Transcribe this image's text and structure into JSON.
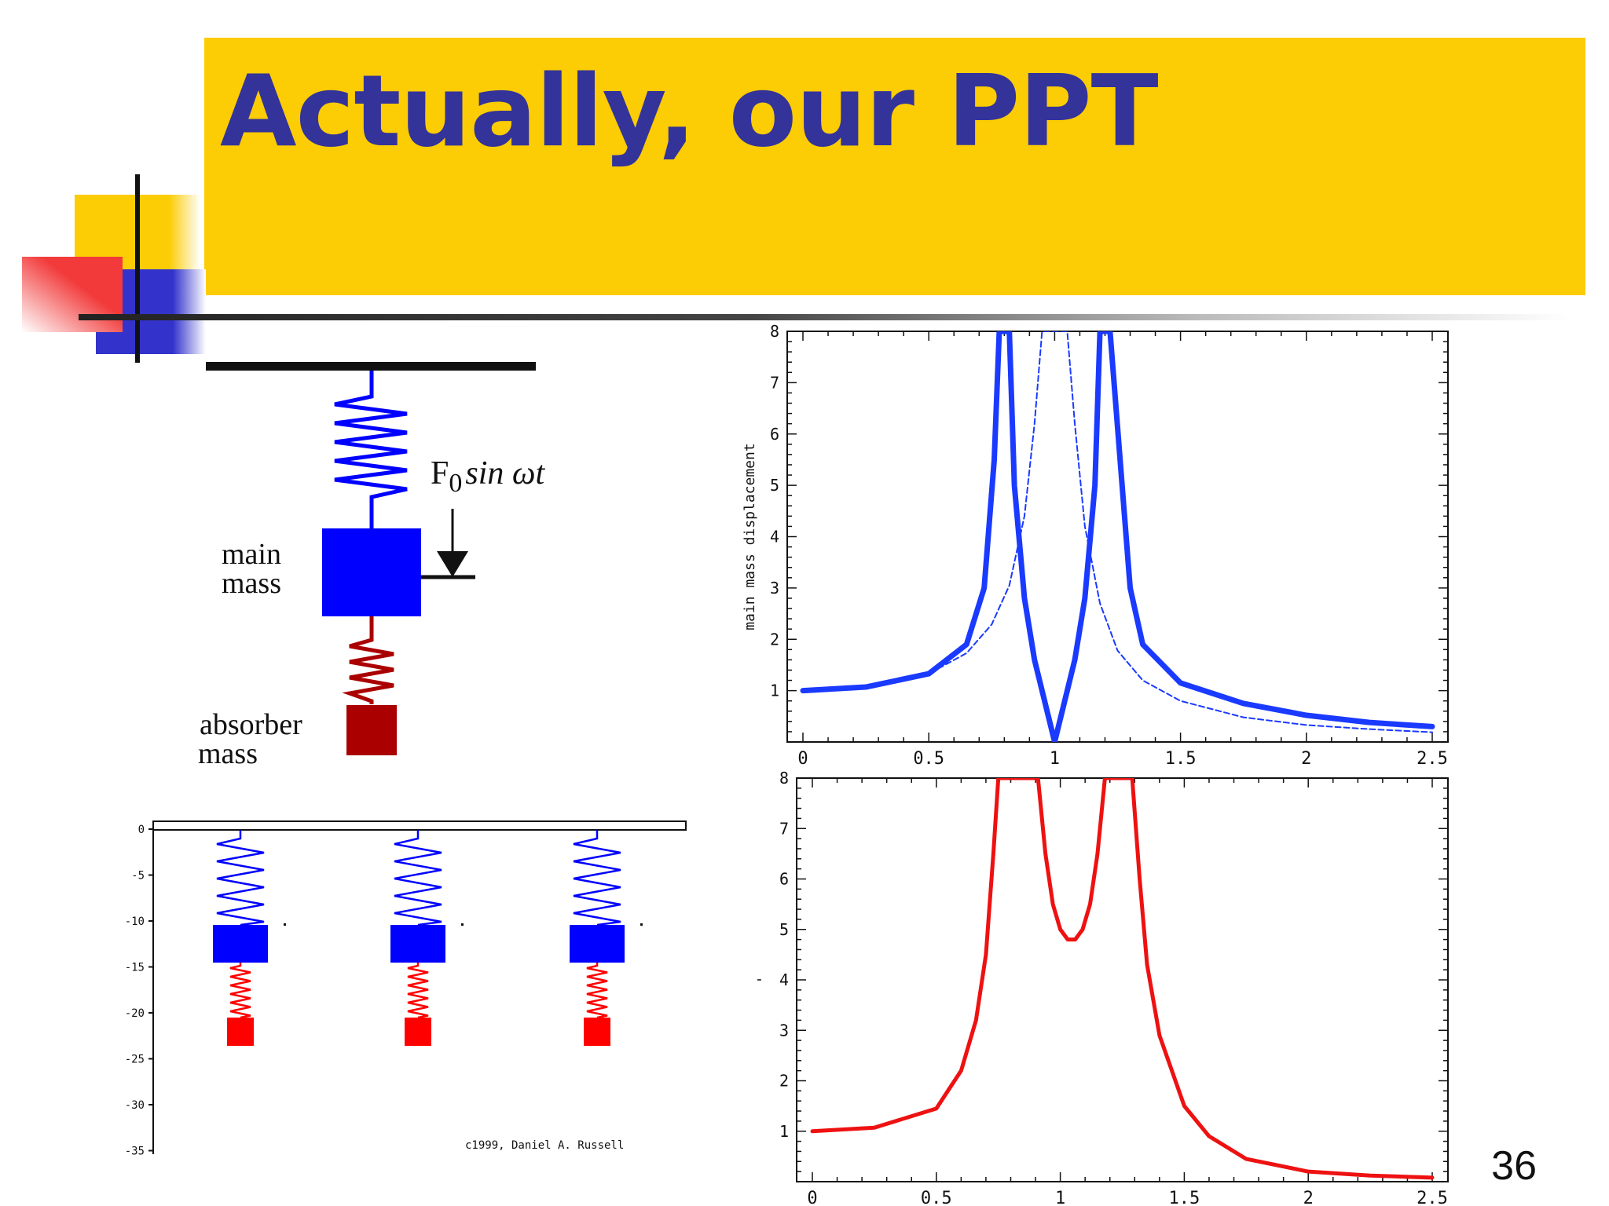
{
  "slide": {
    "title": "Actually, our PPT",
    "slide_number": "36",
    "colors": {
      "title_bar": "#fccc04",
      "title_text": "#33339a",
      "main_mass": "#0000ff",
      "absorber_mass": "#aa0000",
      "anim_absorber": "#ff0000"
    }
  },
  "diagram": {
    "force_label": "F",
    "force_subscript": "0",
    "force_rest": "sin ωt",
    "main_mass_line1": "main",
    "main_mass_line2": "mass",
    "absorber_line1": "absorber",
    "absorber_line2": "mass"
  },
  "animation": {
    "y_ticks": [
      "0",
      "-5",
      "-10",
      "-15",
      "-20",
      "-25",
      "-30",
      "-35"
    ],
    "copyright": "c1999, Daniel A. Russell",
    "units": 3
  },
  "chart_data": [
    {
      "type": "line",
      "ylabel": "main mass displacement",
      "xlim": [
        0,
        2.5
      ],
      "ylim": [
        0,
        8
      ],
      "x_ticks": [
        "0",
        "0.5",
        "1",
        "1.5",
        "2",
        "2.5"
      ],
      "y_ticks": [
        "1",
        "2",
        "3",
        "4",
        "5",
        "6",
        "7",
        "8"
      ],
      "series": [
        {
          "style": "solid-thick",
          "color": "#1a3aff",
          "x": [
            0,
            0.25,
            0.5,
            0.65,
            0.72,
            0.76,
            0.78,
            0.82,
            0.84,
            0.88,
            0.92,
            0.96,
            1.0,
            1.04,
            1.08,
            1.12,
            1.16,
            1.18,
            1.2,
            1.22,
            1.26,
            1.3,
            1.35,
            1.5,
            1.75,
            2.0,
            2.25,
            2.5
          ],
          "y": [
            1.0,
            1.07,
            1.33,
            1.9,
            3.0,
            5.5,
            8.0,
            8.0,
            5.0,
            2.8,
            1.6,
            0.8,
            0.0,
            0.8,
            1.6,
            2.8,
            5.0,
            8.0,
            8.0,
            8.0,
            5.5,
            3.0,
            1.9,
            1.15,
            0.75,
            0.52,
            0.38,
            0.3
          ]
        },
        {
          "style": "dashed-thin",
          "color": "#1a3aff",
          "x": [
            0,
            0.25,
            0.5,
            0.65,
            0.75,
            0.82,
            0.88,
            0.92,
            0.95,
            0.97,
            1.03,
            1.05,
            1.08,
            1.12,
            1.18,
            1.25,
            1.35,
            1.5,
            1.75,
            2.0,
            2.25,
            2.5
          ],
          "y": [
            1.0,
            1.07,
            1.33,
            1.73,
            2.29,
            3.05,
            4.4,
            6.2,
            8.0,
            8.0,
            8.0,
            8.0,
            6.2,
            4.2,
            2.7,
            1.78,
            1.2,
            0.8,
            0.48,
            0.33,
            0.25,
            0.19
          ]
        }
      ]
    },
    {
      "type": "line",
      "ylabel": "'",
      "xlim": [
        0,
        2.5
      ],
      "ylim": [
        0,
        8
      ],
      "x_ticks": [
        "0",
        "0.5",
        "1",
        "1.5",
        "2",
        "2.5"
      ],
      "y_ticks": [
        "1",
        "2",
        "3",
        "4",
        "5",
        "6",
        "7",
        "8"
      ],
      "series": [
        {
          "style": "solid-thick",
          "color": "#ee1111",
          "x": [
            0,
            0.25,
            0.5,
            0.6,
            0.66,
            0.7,
            0.73,
            0.75,
            0.91,
            0.94,
            0.97,
            1.0,
            1.03,
            1.06,
            1.09,
            1.12,
            1.15,
            1.17,
            1.18,
            1.29,
            1.32,
            1.35,
            1.4,
            1.5,
            1.6,
            1.75,
            2.0,
            2.25,
            2.5
          ],
          "y": [
            1.0,
            1.07,
            1.45,
            2.2,
            3.2,
            4.5,
            6.5,
            8.0,
            8.0,
            6.5,
            5.5,
            5.0,
            4.8,
            4.8,
            5.0,
            5.5,
            6.5,
            7.5,
            8.0,
            8.0,
            6.0,
            4.3,
            2.9,
            1.5,
            0.9,
            0.45,
            0.2,
            0.12,
            0.08
          ]
        }
      ]
    }
  ]
}
